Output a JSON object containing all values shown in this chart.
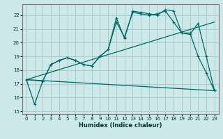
{
  "xlabel": "Humidex (Indice chaleur)",
  "bg_color": "#cce8e8",
  "grid_color": "#aacccc",
  "line_color": "#006666",
  "xlim": [
    -0.5,
    23.5
  ],
  "ylim": [
    14.8,
    22.8
  ],
  "yticks": [
    15,
    16,
    17,
    18,
    19,
    20,
    21,
    22
  ],
  "xticks": [
    0,
    1,
    2,
    3,
    4,
    5,
    6,
    7,
    8,
    9,
    10,
    11,
    12,
    13,
    14,
    15,
    16,
    17,
    18,
    19,
    20,
    21,
    22,
    23
  ],
  "line1_x": [
    0,
    1,
    2,
    3,
    4,
    5,
    6,
    7,
    8,
    9,
    10,
    11,
    12,
    13,
    14,
    15,
    16,
    17,
    18,
    19,
    20,
    21,
    22,
    23
  ],
  "line1_y": [
    17.3,
    15.5,
    17.2,
    18.4,
    18.7,
    18.9,
    18.7,
    18.4,
    18.3,
    19.0,
    19.5,
    21.8,
    20.3,
    22.3,
    22.2,
    22.1,
    22.0,
    22.4,
    22.3,
    20.7,
    20.7,
    19.0,
    17.8,
    16.5
  ],
  "line2_x": [
    0,
    2,
    3,
    4,
    5,
    6,
    7,
    8,
    9,
    10,
    11,
    12,
    13,
    14,
    15,
    16,
    17,
    18,
    19,
    20,
    21,
    22,
    23
  ],
  "line2_y": [
    17.3,
    17.2,
    18.4,
    18.7,
    18.9,
    18.7,
    18.4,
    18.3,
    19.0,
    19.5,
    21.5,
    20.4,
    22.2,
    22.1,
    22.0,
    22.1,
    22.3,
    21.5,
    20.7,
    20.6,
    21.4,
    19.0,
    16.5
  ],
  "line3_x": [
    0,
    23
  ],
  "line3_y": [
    17.3,
    21.5
  ],
  "line4_x": [
    0,
    23
  ],
  "line4_y": [
    17.3,
    16.5
  ]
}
